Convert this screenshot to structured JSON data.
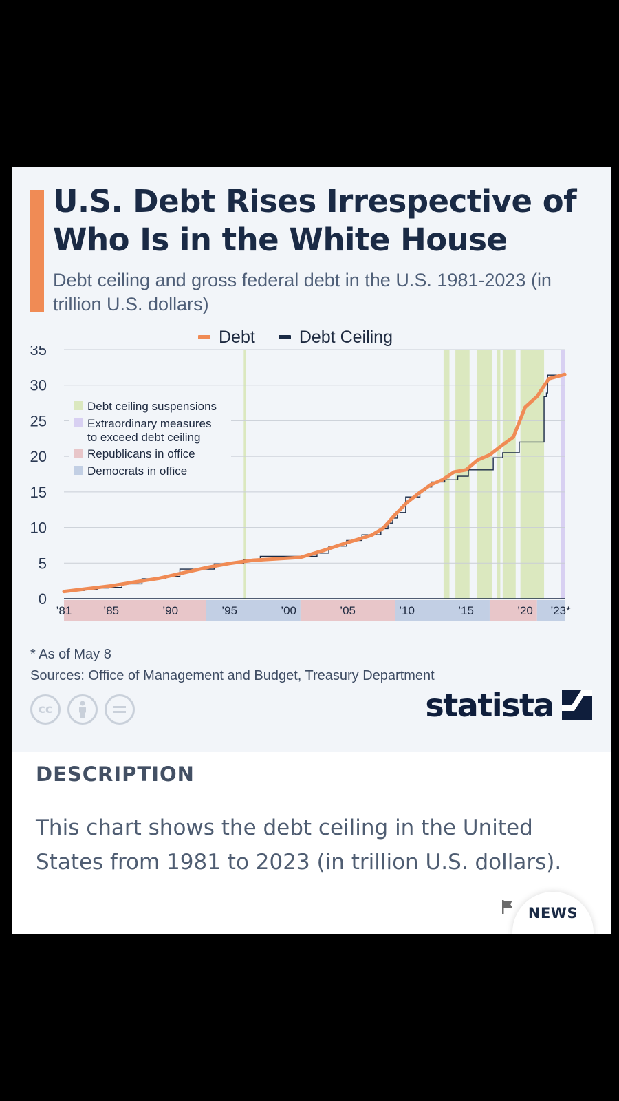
{
  "title": "U.S. Debt Rises Irrespective of Who Is in the White House",
  "subtitle": "Debt ceiling and gross federal debt in the U.S. 1981-2023 (in trillion U.S. dollars)",
  "legend": {
    "debt": {
      "label": "Debt",
      "color": "#f08b55"
    },
    "ceiling": {
      "label": "Debt Ceiling",
      "color": "#1a2a45"
    }
  },
  "inner_legend": {
    "suspensions": {
      "label": "Debt ceiling suspensions",
      "color": "#dbe8bf"
    },
    "extraordinary": {
      "label": "Extraordinary measures to exceed debt ceiling",
      "lines": [
        "Extraordinary measures",
        "to exceed debt ceiling"
      ],
      "color": "#d8d0f2"
    },
    "republicans": {
      "label": "Republicans in office",
      "color": "#e8c6c9"
    },
    "democrats": {
      "label": "Democrats in office",
      "color": "#c2cfe4"
    }
  },
  "footnote": "* As of May 8",
  "sources": "Sources: Office of Management and Budget, Treasury Department",
  "license_icons": [
    "cc-icon",
    "attribution-icon",
    "no-derivatives-icon"
  ],
  "brand": "statista",
  "description": {
    "heading": "DESCRIPTION",
    "text": "This chart shows the debt ceiling in the United States from 1981 to 2023 (in trillion U.S. dollars)."
  },
  "news_button": "NEWS",
  "chart_data": {
    "type": "line",
    "xlim": [
      1981,
      2023.4
    ],
    "ylim": [
      0,
      35
    ],
    "y_ticks": [
      0,
      5,
      10,
      15,
      20,
      25,
      30,
      35
    ],
    "x_ticks": [
      {
        "value": 1981,
        "label": "’81"
      },
      {
        "value": 1985,
        "label": "’85"
      },
      {
        "value": 1990,
        "label": "’90"
      },
      {
        "value": 1995,
        "label": "’95"
      },
      {
        "value": 2000,
        "label": "’00"
      },
      {
        "value": 2005,
        "label": "’05"
      },
      {
        "value": 2010,
        "label": "’10"
      },
      {
        "value": 2015,
        "label": "’15"
      },
      {
        "value": 2020,
        "label": "’20"
      },
      {
        "value": 2023,
        "label": "’23*"
      }
    ],
    "grid": true,
    "series": [
      {
        "name": "Debt",
        "color": "#f08b55",
        "x": [
          1981,
          1983,
          1985,
          1987,
          1989,
          1991,
          1993,
          1995,
          1997,
          1999,
          2001,
          2003,
          2005,
          2007,
          2008,
          2009,
          2010,
          2011,
          2012,
          2013,
          2014,
          2015,
          2016,
          2017,
          2018,
          2019,
          2020,
          2021,
          2022,
          2023.35
        ],
        "y": [
          1.0,
          1.4,
          1.8,
          2.35,
          2.85,
          3.6,
          4.35,
          4.95,
          5.4,
          5.6,
          5.8,
          6.8,
          7.9,
          8.9,
          9.9,
          11.8,
          13.5,
          14.8,
          16.0,
          16.7,
          17.8,
          18.1,
          19.5,
          20.2,
          21.5,
          22.7,
          26.9,
          28.4,
          30.9,
          31.5
        ]
      },
      {
        "name": "Debt Ceiling",
        "color": "#1a2a45",
        "step": true,
        "x": [
          1981,
          1981.8,
          1982.7,
          1983.8,
          1984.8,
          1985.9,
          1987.6,
          1989.6,
          1990.8,
          1993.7,
          1996.2,
          1997.6,
          2002.4,
          2003.4,
          2004.9,
          2006.2,
          2007.8,
          2008.4,
          2008.8,
          2009.2,
          2009.9,
          2011.1,
          2011.6,
          2012.1,
          2013.2,
          2014.3,
          2015.2,
          2017.3,
          2018.1,
          2019.5,
          2021.6,
          2021.8,
          2021.9,
          2023.35
        ],
        "y": [
          1.08,
          1.14,
          1.29,
          1.49,
          1.57,
          2.08,
          2.8,
          3.12,
          4.15,
          4.9,
          5.5,
          5.95,
          6.4,
          7.38,
          8.18,
          8.97,
          9.82,
          10.62,
          11.32,
          12.1,
          14.29,
          15.19,
          15.69,
          16.39,
          16.7,
          17.2,
          18.1,
          19.8,
          20.5,
          22.0,
          28.4,
          28.9,
          31.4,
          31.4
        ]
      }
    ],
    "suspensions": [
      [
        1996.2,
        1996.4
      ],
      [
        2013.1,
        2013.6
      ],
      [
        2014.1,
        2015.3
      ],
      [
        2015.9,
        2017.2
      ],
      [
        2017.6,
        2017.9
      ],
      [
        2018.1,
        2019.2
      ],
      [
        2019.6,
        2021.6
      ]
    ],
    "extraordinary_measures": [
      [
        2023.0,
        2023.35
      ]
    ],
    "administrations": [
      {
        "party": "republican",
        "start": 1981,
        "end": 1993
      },
      {
        "party": "democrat",
        "start": 1993,
        "end": 2001
      },
      {
        "party": "republican",
        "start": 2001,
        "end": 2009
      },
      {
        "party": "democrat",
        "start": 2009,
        "end": 2017
      },
      {
        "party": "republican",
        "start": 2017,
        "end": 2021
      },
      {
        "party": "democrat",
        "start": 2021,
        "end": 2023.4
      }
    ]
  }
}
